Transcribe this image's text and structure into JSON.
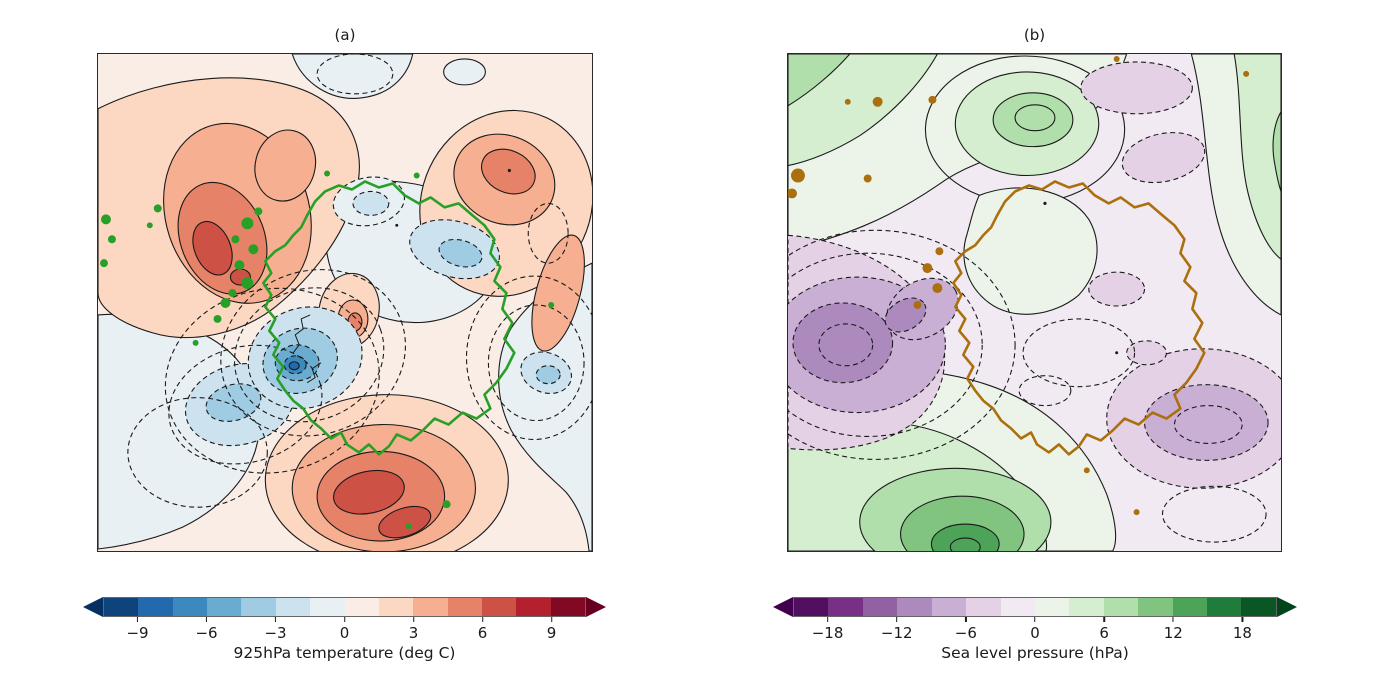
{
  "figure": {
    "background": "#ffffff",
    "text_color": "#1a1a1a",
    "frame_color": "#2a2a2a"
  },
  "panels": [
    {
      "title": "(a)",
      "coastline_color": "#28a028",
      "contour_style": {
        "positive": "solid",
        "negative": "dashed",
        "line_color": "black"
      },
      "colorbar": {
        "label": "925hPa temperature (deg C)",
        "colormap": "RdBu_r",
        "extend": "both",
        "vmin": -10.5,
        "vmax": 10.5,
        "level_step": 1.5,
        "tick_values": [
          -9,
          -6,
          -3,
          0,
          3,
          6,
          9
        ],
        "tick_labels": [
          "−9",
          "−6",
          "−3",
          "0",
          "3",
          "6",
          "9"
        ],
        "segment_colors": [
          "#0f437c",
          "#2369ae",
          "#3c89be",
          "#6aacd0",
          "#9fcce2",
          "#cce2ef",
          "#e9f0f4",
          "#f9ede6",
          "#fcd7c2",
          "#f6b091",
          "#e58268",
          "#ce5146",
          "#b5202e",
          "#820923"
        ],
        "under_color": "#053061",
        "over_color": "#67001f"
      }
    },
    {
      "title": "(b)",
      "coastline_color": "#ab6f0d",
      "contour_style": {
        "positive": "solid",
        "negative": "dashed",
        "line_color": "black"
      },
      "colorbar": {
        "label": "Sea level pressure (hPa)",
        "colormap": "PRGn",
        "extend": "both",
        "vmin": -21,
        "vmax": 21,
        "level_step": 3,
        "tick_values": [
          -18,
          -12,
          -6,
          0,
          6,
          12,
          18
        ],
        "tick_labels": [
          "−18",
          "−12",
          "−6",
          "0",
          "6",
          "12",
          "18"
        ],
        "segment_colors": [
          "#530f5f",
          "#782f86",
          "#9261a3",
          "#ad8abd",
          "#caafd4",
          "#e4d1e6",
          "#f1eaf2",
          "#ecf4ea",
          "#d5eecf",
          "#b1dfab",
          "#80c480",
          "#4da358",
          "#1f7c3a",
          "#0a5725"
        ],
        "under_color": "#40004b",
        "over_color": "#00441b"
      }
    }
  ],
  "chart_data": [
    {
      "type": "heatmap",
      "subtype": "filled_contour_map",
      "panel": "(a)",
      "title": "(a)",
      "variable": "925hPa temperature anomaly (deg C)",
      "region": "Antarctica, south polar stereographic view",
      "coastline": "Antarctic coastline drawn in green",
      "levels": {
        "min": -10.5,
        "max": 10.5,
        "step": 1.5,
        "extend": "both"
      },
      "colorbar_ticks": [
        -9,
        -6,
        -3,
        0,
        3,
        6,
        9
      ],
      "contour_line_style": "solid for positive anomalies, dashed for negative",
      "features": [
        {
          "location": "upper-left ocean / Peninsula side",
          "anomaly_degC": "+4.5 to +7.5 warm maximum"
        },
        {
          "location": "bottom-center (Ross Sea sector)",
          "anomaly_degC": "+6 to +7.5 warm maximum"
        },
        {
          "location": "upper-right ocean ridge",
          "anomaly_degC": "+3 to +6 warm"
        },
        {
          "location": "interior plateau near pole",
          "anomaly_degC": "-6 to -9 cold core"
        },
        {
          "location": "left mid-sector blob",
          "anomaly_degC": "-3 to -4.5 cold"
        },
        {
          "location": "East Antarctic interior and right sector",
          "anomaly_degC": "-1.5 to -3 cool"
        }
      ]
    },
    {
      "type": "heatmap",
      "subtype": "filled_contour_map",
      "panel": "(b)",
      "title": "(b)",
      "variable": "Sea level pressure anomaly (hPa)",
      "region": "Antarctica, south polar stereographic view",
      "coastline": "Antarctic coastline drawn in brown",
      "levels": {
        "min": -21,
        "max": 21,
        "step": 3,
        "extend": "both"
      },
      "colorbar_ticks": [
        -18,
        -12,
        -6,
        0,
        6,
        12,
        18
      ],
      "contour_line_style": "solid for positive anomalies, dashed for negative",
      "features": [
        {
          "location": "left-center (Amundsen–Bellingshausen Sea)",
          "anomaly_hPa": "-12 to -15 deep low"
        },
        {
          "location": "bottom-center ocean",
          "anomaly_hPa": "+15 to +21 strong high"
        },
        {
          "location": "top-center blob",
          "anomaly_hPa": "+6 to +9 high"
        },
        {
          "location": "top-left corner band",
          "anomaly_hPa": "+6 to +9 high"
        },
        {
          "location": "right edge band",
          "anomaly_hPa": "+3 to +9 high"
        },
        {
          "location": "mid-right blob",
          "anomaly_hPa": "-6 to -9 low"
        },
        {
          "location": "continent interior",
          "anomaly_hPa": "-3 to -6 weak low"
        }
      ]
    }
  ]
}
